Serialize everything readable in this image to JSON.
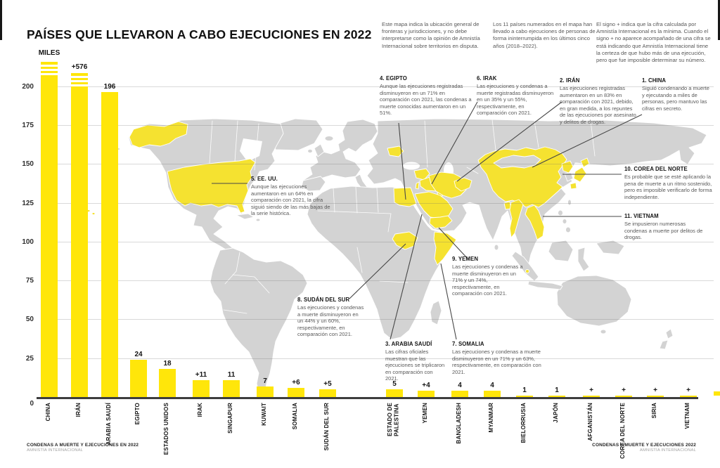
{
  "title": "PAÍSES QUE LLEVARON A CABO EJECUCIONES EN 2022",
  "colors": {
    "bar_yellow": "#FFE60A",
    "map_yellow": "#F5E230",
    "land_gray": "#D3D3D3",
    "axis_dark": "#3D3D3D"
  },
  "notes": [
    "Este mapa indica la ubicación general de fronteras y jurisdicciones, y no debe interpretarse como la opinión de Amnistía Internacional sobre territorios en disputa.",
    "Los 11 países numerados en el mapa han llevado a cabo ejecuciones de personas de forma ininterrumpida en los últimos cinco años (2018–2022).",
    "El signo + indica que la cifra calculada por Amnistía Internacional es la mínima. Cuando el signo + no aparece acompañado de una cifra se está indicando que Amnistía Internacional tiene la certeza de que hubo más de una ejecución, pero que fue imposible determinar su número."
  ],
  "chart_data": {
    "type": "bar",
    "title": "PAÍSES QUE LLEVARON A CABO EJECUCIONES EN 2022",
    "ylabel": "MILES",
    "yticks": [
      200,
      175,
      150,
      125,
      100,
      75,
      50,
      25,
      0
    ],
    "ylim": [
      0,
      200
    ],
    "grid": true,
    "categories": [
      "CHINA",
      "IRÁN",
      "ARABIA SAUDÍ",
      "EGIPTO",
      "ESTADOS UNIDOS",
      "IRAK",
      "SINGAPUR",
      "KUWAIT",
      "SOMALIA",
      "SUDÁN DEL SUR",
      "ESTADO DE\nPALESTINA",
      "YEMEN",
      "BANGLADESH",
      "MYANMAR",
      "BIELORRUSIA",
      "JAPÓN",
      "AFGANISTÁN",
      "COREA DEL NORTE",
      "SIRIA",
      "VIETNAM"
    ],
    "value_labels": [
      "MILES",
      "+576",
      "196",
      "24",
      "18",
      "+11",
      "11",
      "7",
      "+6",
      "+5",
      "5",
      "+4",
      "4",
      "4",
      "1",
      "1",
      "+",
      "+",
      "+",
      "+"
    ],
    "values": [
      null,
      576,
      196,
      24,
      18,
      11,
      11,
      7,
      6,
      5,
      5,
      4,
      4,
      4,
      1,
      1,
      null,
      null,
      null,
      null
    ],
    "broken_bars": [
      "CHINA",
      "IRÁN"
    ]
  },
  "map": {
    "highlighted_countries": [
      "China",
      "Irán",
      "Arabia Saudí",
      "Egipto",
      "Estados Unidos",
      "Irak",
      "Singapur",
      "Kuwait",
      "Somalia",
      "Sudán del Sur",
      "Estado de Palestina",
      "Yemen",
      "Bangladesh",
      "Myanmar",
      "Bielorrusia",
      "Japón",
      "Afganistán",
      "Corea del Norte",
      "Siria",
      "Vietnam"
    ]
  },
  "annotations": [
    {
      "num": "1",
      "name": "CHINA",
      "text": "Siguió condenando a muerte y ejecutando a miles de personas, pero mantuvo las cifras en secreto."
    },
    {
      "num": "2",
      "name": "IRÁN",
      "text": "Las ejecuciones registradas aumentaron en un 83% en comparación con 2021, debido, en gran medida, a los repuntes de las ejecuciones por asesinato y delitos de drogas."
    },
    {
      "num": "3",
      "name": "ARABIA SAUDÍ",
      "text": "Las cifras oficiales muestran que las ejecuciones se triplicaron en comparación con 2021."
    },
    {
      "num": "4",
      "name": "EGIPTO",
      "text": "Aunque las ejecuciones registradas disminuyeron en un 71% en comparación con 2021, las condenas a muerte conocidas aumentaron en un 51%."
    },
    {
      "num": "5",
      "name": "EE. UU.",
      "text": "Aunque las ejecuciones aumentaron en un 64% en comparación con 2021, la cifra siguió siendo de las más bajas de la serie histórica."
    },
    {
      "num": "6",
      "name": "IRAK",
      "text": "Las ejecuciones y condenas a muerte registradas disminuyeron en un 35% y un 55%, respectivamente, en comparación con 2021."
    },
    {
      "num": "7",
      "name": "SOMALIA",
      "text": "Las ejecuciones y condenas a muerte disminuyeron en un 71% y un 63%, respectivamente, en comparación con 2021."
    },
    {
      "num": "8",
      "name": "SUDÁN DEL SUR",
      "text": "Las ejecuciones y condenas a muerte disminuyeron en un 44% y un 60%, respectivamente, en comparación con 2021."
    },
    {
      "num": "9",
      "name": "YEMEN",
      "text": "Las ejecuciones y condenas a muerte disminuyeron en un 71% y un 74%, respectivamente, en comparación con 2021."
    },
    {
      "num": "10",
      "name": "COREA DEL NORTE",
      "text": "Es probable que se esté aplicando la pena de muerte a un ritmo sostenido, pero es imposible verificarlo de forma independiente."
    },
    {
      "num": "11",
      "name": "VIETNAM",
      "text": "Se impusieron numerosas condenas a muerte por delitos de drogas."
    }
  ],
  "footer_left": {
    "line1": "CONDENAS A MUERTE Y EJECUCIONES EN 2022",
    "line2": "AMNISTÍA INTERNACIONAL"
  },
  "footer_right": {
    "line1": "CONDENAS A MUERTE Y EJECUCIONES 2022",
    "line2": "AMNISTÍA INTERNACIONAL"
  }
}
